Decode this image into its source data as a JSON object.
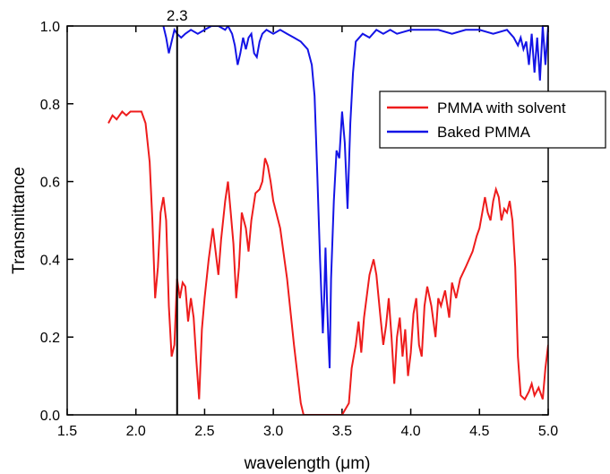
{
  "chart_data": {
    "type": "line",
    "xlabel": "wavelength (μm)",
    "ylabel": "Transmittance",
    "xlim": [
      1.5,
      5.0
    ],
    "ylim": [
      0.0,
      1.0
    ],
    "x_ticks": [
      "1.5",
      "2.0",
      "2.5",
      "3.0",
      "3.5",
      "4.0",
      "4.5",
      "5.0"
    ],
    "y_ticks": [
      "0.0",
      "0.2",
      "0.4",
      "0.6",
      "0.8",
      "1.0"
    ],
    "grid": false,
    "legend_position": "top-right",
    "annotation": {
      "x": 2.3,
      "label": "2.3"
    },
    "series": [
      {
        "name": "PMMA with solvent",
        "color": "#ee1c1c",
        "points": [
          [
            1.8,
            0.75
          ],
          [
            1.83,
            0.77
          ],
          [
            1.86,
            0.76
          ],
          [
            1.9,
            0.78
          ],
          [
            1.93,
            0.77
          ],
          [
            1.96,
            0.78
          ],
          [
            2.0,
            0.78
          ],
          [
            2.04,
            0.78
          ],
          [
            2.07,
            0.75
          ],
          [
            2.1,
            0.65
          ],
          [
            2.12,
            0.5
          ],
          [
            2.14,
            0.3
          ],
          [
            2.16,
            0.38
          ],
          [
            2.18,
            0.52
          ],
          [
            2.2,
            0.56
          ],
          [
            2.22,
            0.5
          ],
          [
            2.24,
            0.28
          ],
          [
            2.26,
            0.15
          ],
          [
            2.28,
            0.18
          ],
          [
            2.3,
            0.35
          ],
          [
            2.32,
            0.3
          ],
          [
            2.34,
            0.34
          ],
          [
            2.36,
            0.33
          ],
          [
            2.38,
            0.24
          ],
          [
            2.4,
            0.3
          ],
          [
            2.42,
            0.25
          ],
          [
            2.44,
            0.14
          ],
          [
            2.46,
            0.04
          ],
          [
            2.48,
            0.22
          ],
          [
            2.5,
            0.3
          ],
          [
            2.53,
            0.4
          ],
          [
            2.56,
            0.48
          ],
          [
            2.58,
            0.42
          ],
          [
            2.6,
            0.36
          ],
          [
            2.62,
            0.45
          ],
          [
            2.65,
            0.55
          ],
          [
            2.67,
            0.6
          ],
          [
            2.69,
            0.52
          ],
          [
            2.71,
            0.44
          ],
          [
            2.73,
            0.3
          ],
          [
            2.75,
            0.38
          ],
          [
            2.77,
            0.52
          ],
          [
            2.8,
            0.48
          ],
          [
            2.82,
            0.42
          ],
          [
            2.84,
            0.5
          ],
          [
            2.87,
            0.57
          ],
          [
            2.9,
            0.58
          ],
          [
            2.92,
            0.6
          ],
          [
            2.94,
            0.66
          ],
          [
            2.96,
            0.64
          ],
          [
            2.98,
            0.6
          ],
          [
            3.0,
            0.55
          ],
          [
            3.05,
            0.48
          ],
          [
            3.1,
            0.35
          ],
          [
            3.15,
            0.18
          ],
          [
            3.2,
            0.03
          ],
          [
            3.22,
            0.0
          ],
          [
            3.3,
            0.0
          ],
          [
            3.4,
            0.0
          ],
          [
            3.5,
            0.0
          ],
          [
            3.55,
            0.03
          ],
          [
            3.57,
            0.12
          ],
          [
            3.6,
            0.18
          ],
          [
            3.62,
            0.24
          ],
          [
            3.64,
            0.16
          ],
          [
            3.66,
            0.25
          ],
          [
            3.7,
            0.36
          ],
          [
            3.73,
            0.4
          ],
          [
            3.75,
            0.36
          ],
          [
            3.78,
            0.25
          ],
          [
            3.8,
            0.18
          ],
          [
            3.82,
            0.23
          ],
          [
            3.84,
            0.3
          ],
          [
            3.86,
            0.2
          ],
          [
            3.88,
            0.08
          ],
          [
            3.9,
            0.2
          ],
          [
            3.92,
            0.25
          ],
          [
            3.94,
            0.15
          ],
          [
            3.96,
            0.22
          ],
          [
            3.98,
            0.1
          ],
          [
            4.0,
            0.16
          ],
          [
            4.02,
            0.26
          ],
          [
            4.04,
            0.3
          ],
          [
            4.06,
            0.18
          ],
          [
            4.08,
            0.15
          ],
          [
            4.1,
            0.28
          ],
          [
            4.12,
            0.33
          ],
          [
            4.15,
            0.28
          ],
          [
            4.18,
            0.2
          ],
          [
            4.2,
            0.3
          ],
          [
            4.22,
            0.28
          ],
          [
            4.25,
            0.32
          ],
          [
            4.28,
            0.25
          ],
          [
            4.3,
            0.34
          ],
          [
            4.33,
            0.3
          ],
          [
            4.36,
            0.35
          ],
          [
            4.4,
            0.38
          ],
          [
            4.45,
            0.42
          ],
          [
            4.48,
            0.46
          ],
          [
            4.5,
            0.48
          ],
          [
            4.52,
            0.52
          ],
          [
            4.54,
            0.56
          ],
          [
            4.56,
            0.52
          ],
          [
            4.58,
            0.5
          ],
          [
            4.6,
            0.55
          ],
          [
            4.62,
            0.58
          ],
          [
            4.64,
            0.56
          ],
          [
            4.66,
            0.5
          ],
          [
            4.68,
            0.53
          ],
          [
            4.7,
            0.52
          ],
          [
            4.72,
            0.55
          ],
          [
            4.74,
            0.5
          ],
          [
            4.76,
            0.38
          ],
          [
            4.78,
            0.15
          ],
          [
            4.8,
            0.05
          ],
          [
            4.83,
            0.04
          ],
          [
            4.86,
            0.06
          ],
          [
            4.88,
            0.08
          ],
          [
            4.9,
            0.05
          ],
          [
            4.93,
            0.07
          ],
          [
            4.96,
            0.04
          ],
          [
            4.98,
            0.12
          ],
          [
            5.0,
            0.18
          ]
        ]
      },
      {
        "name": "Baked PMMA",
        "color": "#1414e6",
        "points": [
          [
            2.2,
            1.0
          ],
          [
            2.22,
            0.97
          ],
          [
            2.24,
            0.93
          ],
          [
            2.26,
            0.96
          ],
          [
            2.28,
            0.99
          ],
          [
            2.3,
            0.98
          ],
          [
            2.33,
            0.97
          ],
          [
            2.36,
            0.98
          ],
          [
            2.4,
            0.99
          ],
          [
            2.45,
            0.98
          ],
          [
            2.5,
            0.99
          ],
          [
            2.55,
            1.0
          ],
          [
            2.6,
            1.0
          ],
          [
            2.65,
            0.99
          ],
          [
            2.67,
            1.0
          ],
          [
            2.7,
            0.98
          ],
          [
            2.72,
            0.95
          ],
          [
            2.74,
            0.9
          ],
          [
            2.76,
            0.93
          ],
          [
            2.78,
            0.97
          ],
          [
            2.8,
            0.94
          ],
          [
            2.82,
            0.97
          ],
          [
            2.84,
            0.98
          ],
          [
            2.86,
            0.93
          ],
          [
            2.88,
            0.92
          ],
          [
            2.9,
            0.96
          ],
          [
            2.92,
            0.98
          ],
          [
            2.95,
            0.99
          ],
          [
            3.0,
            0.98
          ],
          [
            3.05,
            0.99
          ],
          [
            3.1,
            0.98
          ],
          [
            3.15,
            0.97
          ],
          [
            3.2,
            0.96
          ],
          [
            3.25,
            0.94
          ],
          [
            3.28,
            0.9
          ],
          [
            3.3,
            0.82
          ],
          [
            3.32,
            0.62
          ],
          [
            3.34,
            0.4
          ],
          [
            3.36,
            0.21
          ],
          [
            3.37,
            0.3
          ],
          [
            3.38,
            0.43
          ],
          [
            3.39,
            0.3
          ],
          [
            3.4,
            0.2
          ],
          [
            3.41,
            0.12
          ],
          [
            3.42,
            0.35
          ],
          [
            3.44,
            0.55
          ],
          [
            3.46,
            0.68
          ],
          [
            3.48,
            0.66
          ],
          [
            3.5,
            0.78
          ],
          [
            3.52,
            0.7
          ],
          [
            3.54,
            0.53
          ],
          [
            3.56,
            0.75
          ],
          [
            3.58,
            0.88
          ],
          [
            3.6,
            0.96
          ],
          [
            3.65,
            0.98
          ],
          [
            3.7,
            0.97
          ],
          [
            3.75,
            0.99
          ],
          [
            3.8,
            0.98
          ],
          [
            3.85,
            0.99
          ],
          [
            3.9,
            0.98
          ],
          [
            4.0,
            0.99
          ],
          [
            4.1,
            0.99
          ],
          [
            4.2,
            0.99
          ],
          [
            4.3,
            0.98
          ],
          [
            4.4,
            0.99
          ],
          [
            4.5,
            0.99
          ],
          [
            4.6,
            0.98
          ],
          [
            4.7,
            0.99
          ],
          [
            4.75,
            0.97
          ],
          [
            4.78,
            0.95
          ],
          [
            4.8,
            0.97
          ],
          [
            4.82,
            0.94
          ],
          [
            4.84,
            0.96
          ],
          [
            4.86,
            0.9
          ],
          [
            4.88,
            0.98
          ],
          [
            4.9,
            0.88
          ],
          [
            4.92,
            0.97
          ],
          [
            4.94,
            0.86
          ],
          [
            4.96,
            1.0
          ],
          [
            4.98,
            0.9
          ],
          [
            5.0,
            1.0
          ]
        ]
      }
    ]
  }
}
